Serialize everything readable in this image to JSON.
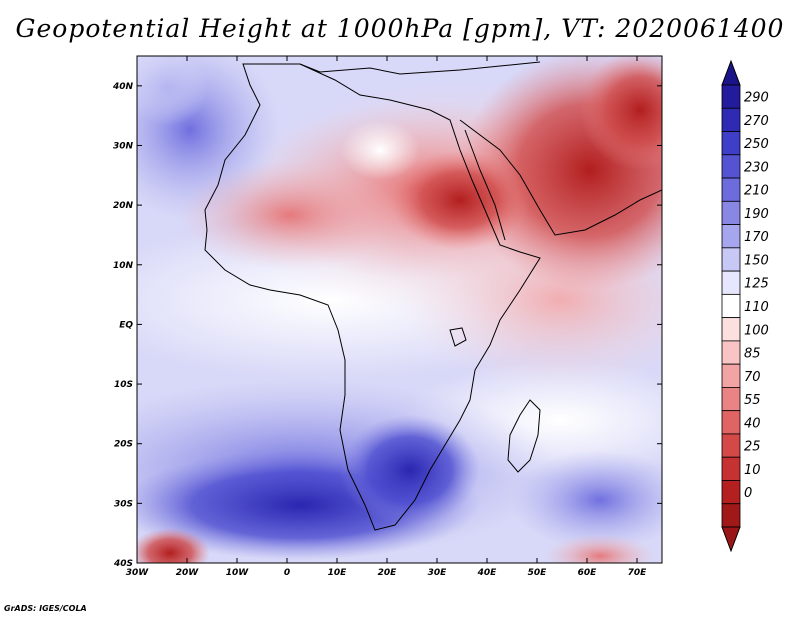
{
  "title": "Geopotential Height at 1000hPa [gpm], VT: 2020061400",
  "credit": "GrADS: IGES/COLA",
  "map": {
    "lon_range": [
      -30,
      75
    ],
    "lat_range": [
      -40,
      45
    ],
    "lon_ticks": [
      "30W",
      "20W",
      "10W",
      "0",
      "10E",
      "20E",
      "30E",
      "40E",
      "50E",
      "60E",
      "70E"
    ],
    "lon_tick_values": [
      -30,
      -20,
      -10,
      0,
      10,
      20,
      30,
      40,
      50,
      60,
      70
    ],
    "lat_ticks": [
      "40N",
      "30N",
      "20N",
      "10N",
      "EQ",
      "10S",
      "20S",
      "30S",
      "40S"
    ],
    "lat_tick_values": [
      40,
      30,
      20,
      10,
      0,
      -10,
      -20,
      -30,
      -40
    ]
  },
  "colorbar": {
    "labels": [
      "290",
      "270",
      "250",
      "230",
      "210",
      "190",
      "170",
      "150",
      "125",
      "110",
      "100",
      "85",
      "70",
      "55",
      "40",
      "25",
      "10",
      "0"
    ],
    "colors": [
      "#221c9c",
      "#2e2ab4",
      "#3e3ec8",
      "#5454d2",
      "#6c6cdc",
      "#8888e4",
      "#a6a6ee",
      "#c8c8f6",
      "#e6e6fc",
      "#ffffff",
      "#fce0e0",
      "#f8c4c4",
      "#f2a4a4",
      "#ea8484",
      "#e06464",
      "#d44848",
      "#c63232",
      "#b42020",
      "#a01818"
    ],
    "top_color": "#1a1488",
    "bottom_color": "#9a1616"
  }
}
